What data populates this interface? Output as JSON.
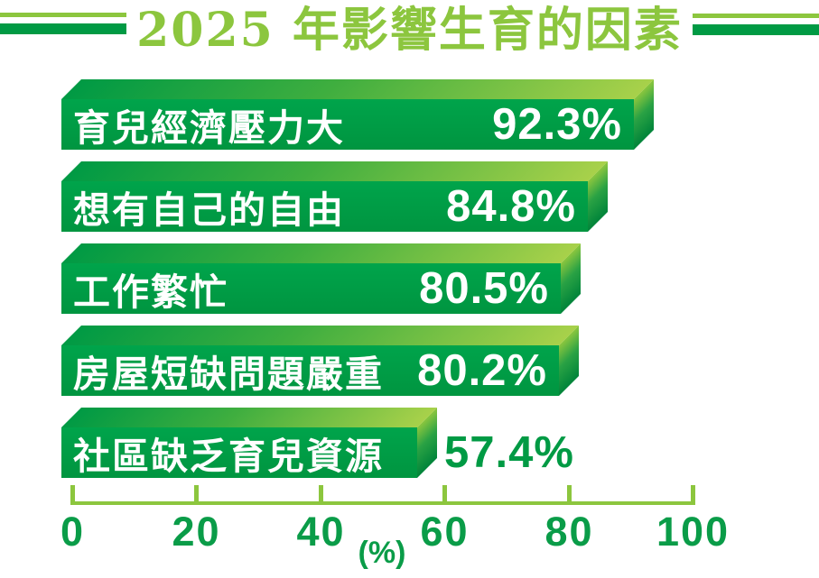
{
  "title": "2025 年影響生育的因素",
  "colors": {
    "accent_light": "#8CC63E",
    "accent_dark": "#009A44",
    "bar_label_text": "#FFFFFF"
  },
  "chart_data": {
    "type": "bar",
    "orientation": "horizontal",
    "bar_style": "3d-extruded",
    "title": "2025 年影響生育的因素",
    "categories": [
      "育兒經濟壓力大",
      "想有自己的自由",
      "工作繁忙",
      "房屋短缺問題嚴重",
      "社區缺乏育兒資源"
    ],
    "values": [
      92.3,
      84.8,
      80.5,
      80.2,
      57.4
    ],
    "value_labels": [
      "92.3%",
      "84.8%",
      "80.5%",
      "80.2%",
      "57.4%"
    ],
    "value_label_position": [
      "inside",
      "inside",
      "inside",
      "inside",
      "outside"
    ],
    "xlabel": "(%)",
    "xlim": [
      0,
      100
    ],
    "x_ticks": [
      0,
      20,
      40,
      60,
      80,
      100
    ],
    "x_tick_labels": [
      "0",
      "20",
      "40",
      "60",
      "80",
      "100"
    ],
    "grid": false,
    "legend": false
  }
}
